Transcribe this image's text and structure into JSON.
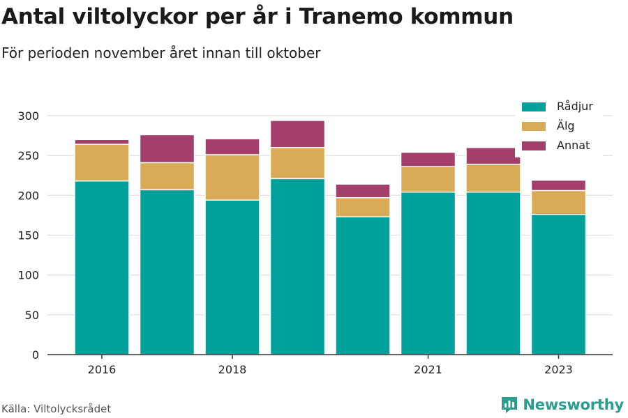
{
  "title": "Antal viltolyckor per år i Tranemo kommun",
  "subtitle": "För perioden november året innan till oktober",
  "source": "Källa: Viltolycksrådet",
  "brand": "Newsworthy",
  "colors": {
    "radjur": "#00a19a",
    "alg": "#d9ab57",
    "annat": "#a33f6a",
    "grid": "#dddddd",
    "axis": "#333333",
    "brand": "#2a9d8f"
  },
  "chart_data": {
    "type": "bar",
    "stacked": true,
    "x": [
      2016,
      2017,
      2018,
      2019,
      2020,
      2021,
      2022,
      2023
    ],
    "x_tick_labels": [
      "2016",
      "2018",
      "2021",
      "2023"
    ],
    "x_tick_values": [
      2016,
      2018,
      2021,
      2023
    ],
    "ylim": [
      0,
      300
    ],
    "y_ticks": [
      0,
      50,
      100,
      150,
      200,
      250,
      300
    ],
    "y_tick_labels": [
      "0",
      "50",
      "100",
      "150",
      "200",
      "250",
      "300"
    ],
    "grid": true,
    "legend_position": "top-right",
    "series": [
      {
        "name": "Rådjur",
        "color_key": "radjur",
        "values": [
          218,
          207,
          194,
          221,
          173,
          204,
          204,
          176
        ]
      },
      {
        "name": "Älg",
        "color_key": "alg",
        "values": [
          46,
          34,
          57,
          39,
          24,
          32,
          35,
          30
        ]
      },
      {
        "name": "Annat",
        "color_key": "annat",
        "values": [
          6,
          35,
          20,
          34,
          17,
          18,
          21,
          13
        ]
      }
    ]
  }
}
